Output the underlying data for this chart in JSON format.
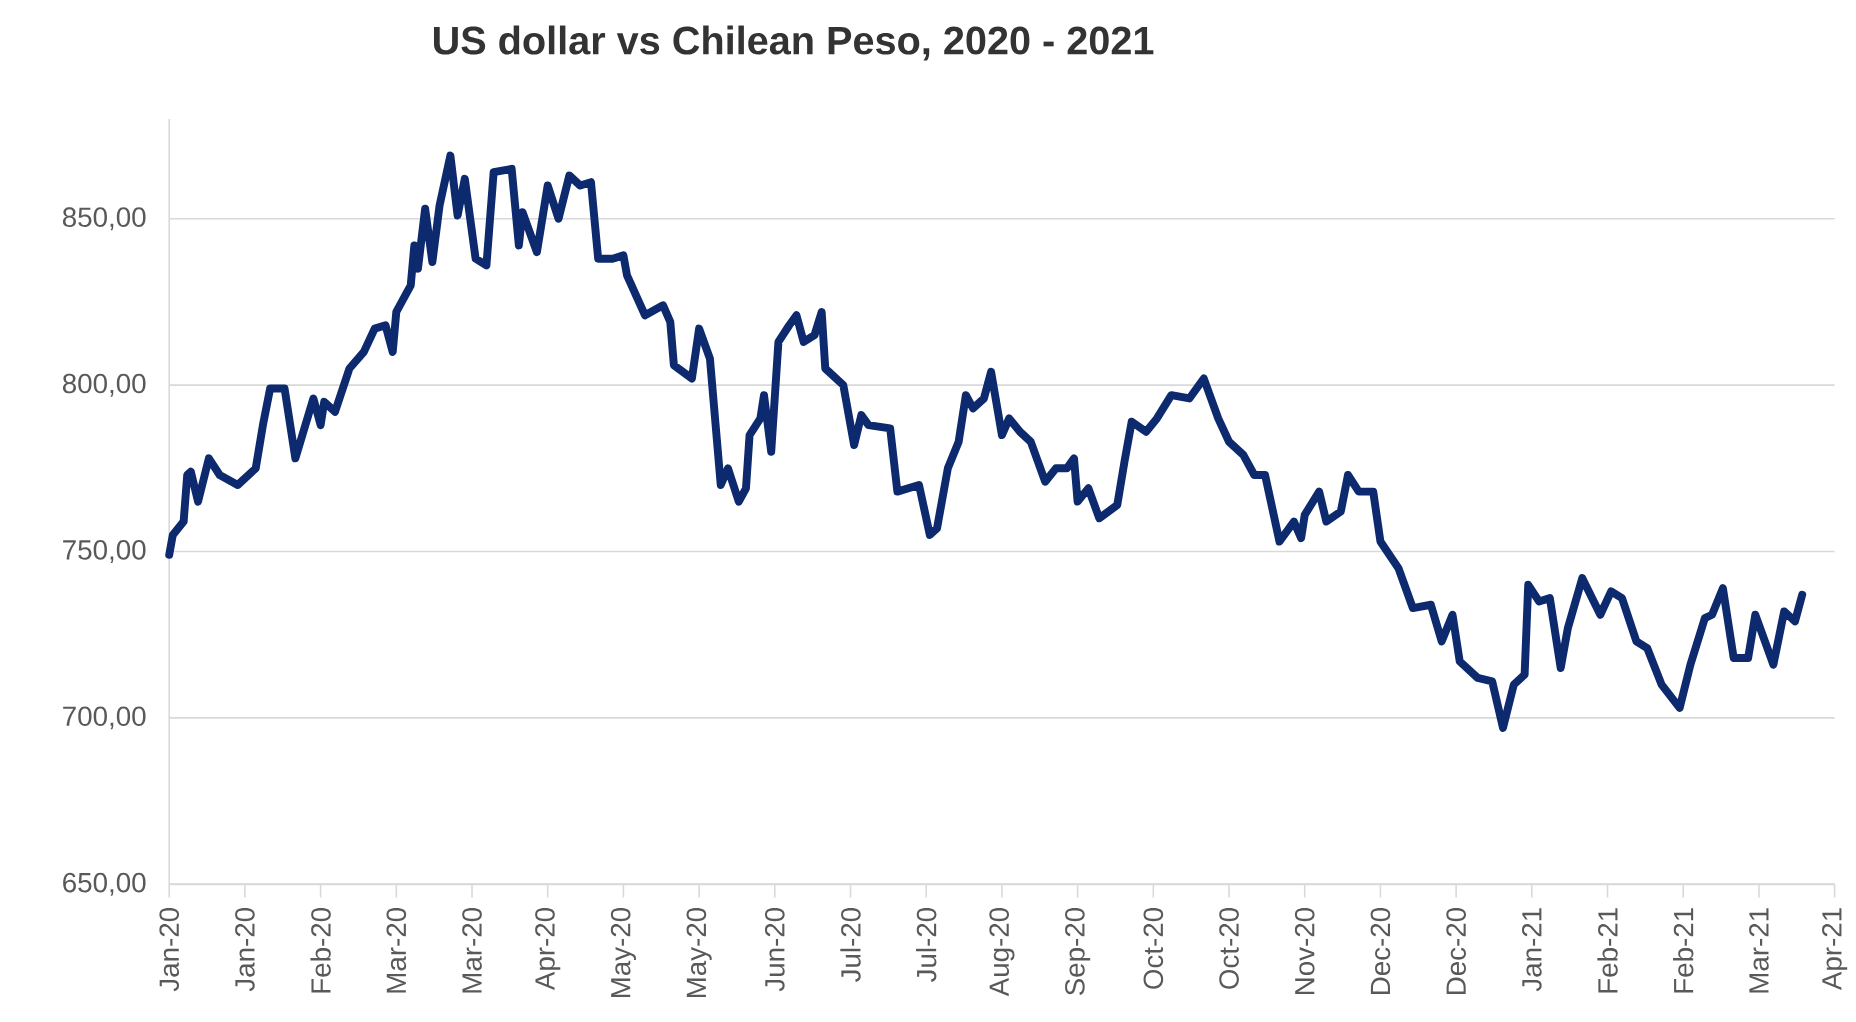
{
  "chart_data": {
    "type": "line",
    "title": "US dollar vs Chilean Peso, 2020 - 2021",
    "color": "#0e2a6e",
    "grid": "y",
    "xlim": [
      "2020-01-02",
      "2021-04-08"
    ],
    "ylim": [
      650,
      880
    ],
    "xticks": [
      {
        "value": "2020-01-02",
        "label": "Jan-20"
      },
      {
        "value": "2020-01-23",
        "label": "Jan-20"
      },
      {
        "value": "2020-02-13",
        "label": "Feb-20"
      },
      {
        "value": "2020-03-05",
        "label": "Mar-20"
      },
      {
        "value": "2020-03-26",
        "label": "Mar-20"
      },
      {
        "value": "2020-04-16",
        "label": "Apr-20"
      },
      {
        "value": "2020-05-07",
        "label": "May-20"
      },
      {
        "value": "2020-05-28",
        "label": "May-20"
      },
      {
        "value": "2020-06-18",
        "label": "Jun-20"
      },
      {
        "value": "2020-07-09",
        "label": "Jul-20"
      },
      {
        "value": "2020-07-30",
        "label": "Jul-20"
      },
      {
        "value": "2020-08-20",
        "label": "Aug-20"
      },
      {
        "value": "2020-09-10",
        "label": "Sep-20"
      },
      {
        "value": "2020-10-01",
        "label": "Oct-20"
      },
      {
        "value": "2020-10-22",
        "label": "Oct-20"
      },
      {
        "value": "2020-11-12",
        "label": "Nov-20"
      },
      {
        "value": "2020-12-03",
        "label": "Dec-20"
      },
      {
        "value": "2020-12-24",
        "label": "Dec-20"
      },
      {
        "value": "2021-01-14",
        "label": "Jan-21"
      },
      {
        "value": "2021-02-04",
        "label": "Feb-21"
      },
      {
        "value": "2021-02-25",
        "label": "Feb-21"
      },
      {
        "value": "2021-03-18",
        "label": "Mar-21"
      },
      {
        "value": "2021-04-08",
        "label": "Apr-21"
      }
    ],
    "yticks": [
      {
        "value": 650,
        "label": "650,00"
      },
      {
        "value": 700,
        "label": "700,00"
      },
      {
        "value": 750,
        "label": "750,00"
      },
      {
        "value": 800,
        "label": "800,00"
      },
      {
        "value": 850,
        "label": "850,00"
      }
    ],
    "x": [
      "2020-01-02",
      "2020-01-03",
      "2020-01-06",
      "2020-01-07",
      "2020-01-08",
      "2020-01-10",
      "2020-01-13",
      "2020-01-16",
      "2020-01-21",
      "2020-01-26",
      "2020-01-28",
      "2020-01-30",
      "2020-02-03",
      "2020-02-06",
      "2020-02-11",
      "2020-02-13",
      "2020-02-14",
      "2020-02-17",
      "2020-02-21",
      "2020-02-25",
      "2020-02-28",
      "2020-03-02",
      "2020-03-04",
      "2020-03-05",
      "2020-03-09",
      "2020-03-10",
      "2020-03-11",
      "2020-03-13",
      "2020-03-15",
      "2020-03-17",
      "2020-03-20",
      "2020-03-22",
      "2020-03-24",
      "2020-03-27",
      "2020-03-30",
      "2020-04-01",
      "2020-04-06",
      "2020-04-08",
      "2020-04-09",
      "2020-04-13",
      "2020-04-16",
      "2020-04-19",
      "2020-04-22",
      "2020-04-25",
      "2020-04-28",
      "2020-04-30",
      "2020-05-04",
      "2020-05-07",
      "2020-05-08",
      "2020-05-13",
      "2020-05-18",
      "2020-05-20",
      "2020-05-21",
      "2020-05-26",
      "2020-05-28",
      "2020-05-31",
      "2020-06-03",
      "2020-06-05",
      "2020-06-08",
      "2020-06-10",
      "2020-06-11",
      "2020-06-14",
      "2020-06-15",
      "2020-06-17",
      "2020-06-19",
      "2020-06-22",
      "2020-06-24",
      "2020-06-26",
      "2020-06-29",
      "2020-07-01",
      "2020-07-02",
      "2020-07-07",
      "2020-07-10",
      "2020-07-12",
      "2020-07-14",
      "2020-07-20",
      "2020-07-22",
      "2020-07-28",
      "2020-07-31",
      "2020-08-02",
      "2020-08-05",
      "2020-08-08",
      "2020-08-10",
      "2020-08-12",
      "2020-08-15",
      "2020-08-17",
      "2020-08-20",
      "2020-08-22",
      "2020-08-25",
      "2020-08-28",
      "2020-09-01",
      "2020-09-04",
      "2020-09-07",
      "2020-09-09",
      "2020-09-10",
      "2020-09-13",
      "2020-09-16",
      "2020-09-21",
      "2020-09-23",
      "2020-09-25",
      "2020-09-29",
      "2020-10-02",
      "2020-10-06",
      "2020-10-11",
      "2020-10-15",
      "2020-10-19",
      "2020-10-22",
      "2020-10-26",
      "2020-10-29",
      "2020-11-01",
      "2020-11-05",
      "2020-11-09",
      "2020-11-11",
      "2020-11-12",
      "2020-11-16",
      "2020-11-18",
      "2020-11-22",
      "2020-11-24",
      "2020-11-27",
      "2020-12-01",
      "2020-12-03",
      "2020-12-08",
      "2020-12-12",
      "2020-12-17",
      "2020-12-20",
      "2020-12-23",
      "2020-12-25",
      "2020-12-30",
      "2021-01-03",
      "2021-01-06",
      "2021-01-09",
      "2021-01-12",
      "2021-01-13",
      "2021-01-16",
      "2021-01-19",
      "2021-01-22",
      "2021-01-24",
      "2021-01-28",
      "2021-02-02",
      "2021-02-05",
      "2021-02-08",
      "2021-02-12",
      "2021-02-15",
      "2021-02-19",
      "2021-02-24",
      "2021-02-27",
      "2021-03-03",
      "2021-03-05",
      "2021-03-08",
      "2021-03-11",
      "2021-03-15",
      "2021-03-17",
      "2021-03-22",
      "2021-03-25",
      "2021-03-28",
      "2021-03-30"
    ],
    "values": [
      749,
      755,
      759,
      773,
      774,
      765,
      778,
      773,
      770,
      775,
      788,
      799,
      799,
      778,
      796,
      788,
      795,
      792,
      805,
      810,
      817,
      818,
      810,
      822,
      830,
      842,
      835,
      853,
      837,
      854,
      869,
      851,
      862,
      838,
      836,
      864,
      865,
      842,
      852,
      840,
      860,
      850,
      863,
      860,
      861,
      838,
      838,
      839,
      833,
      821,
      824,
      819,
      806,
      802,
      817,
      808,
      770,
      775,
      765,
      769,
      785,
      790,
      797,
      780,
      813,
      818,
      821,
      813,
      815,
      822,
      805,
      800,
      782,
      791,
      788,
      787,
      768,
      770,
      755,
      757,
      775,
      783,
      797,
      793,
      796,
      804,
      785,
      790,
      786,
      783,
      771,
      775,
      775,
      778,
      765,
      769,
      760,
      764,
      777,
      789,
      786,
      790,
      797,
      796,
      802,
      790,
      783,
      779,
      773,
      773,
      753,
      759,
      754,
      761,
      768,
      759,
      762,
      773,
      768,
      768,
      753,
      745,
      733,
      734,
      723,
      731,
      717,
      712,
      711,
      697,
      710,
      713,
      740,
      735,
      736,
      715,
      727,
      742,
      731,
      738,
      736,
      723,
      721,
      710,
      703,
      716,
      730,
      731,
      739,
      718,
      718,
      731,
      716,
      732,
      729,
      737
    ]
  }
}
